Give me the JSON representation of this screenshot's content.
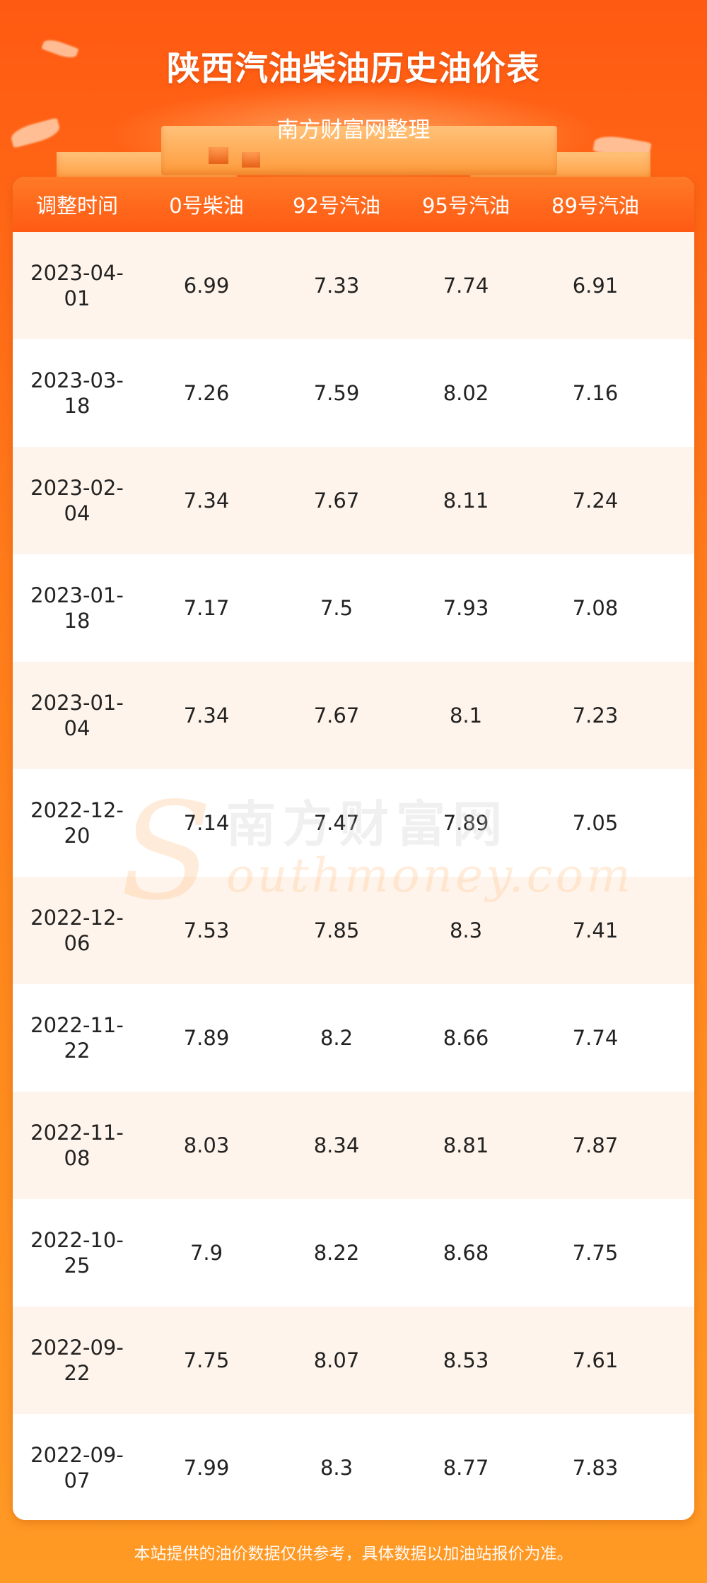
{
  "header": {
    "title": "陕西汽油柴油历史油价表",
    "subtitle": "南方财富网整理"
  },
  "table": {
    "columns": [
      "调整时间",
      "0号柴油",
      "92号汽油",
      "95号汽油",
      "89号汽油"
    ],
    "rows": [
      {
        "date_line1": "2023-04-",
        "date_line2": "01",
        "diesel0": "6.99",
        "gas92": "7.33",
        "gas95": "7.74",
        "gas89": "6.91"
      },
      {
        "date_line1": "2023-03-",
        "date_line2": "18",
        "diesel0": "7.26",
        "gas92": "7.59",
        "gas95": "8.02",
        "gas89": "7.16"
      },
      {
        "date_line1": "2023-02-",
        "date_line2": "04",
        "diesel0": "7.34",
        "gas92": "7.67",
        "gas95": "8.11",
        "gas89": "7.24"
      },
      {
        "date_line1": "2023-01-",
        "date_line2": "18",
        "diesel0": "7.17",
        "gas92": "7.5",
        "gas95": "7.93",
        "gas89": "7.08"
      },
      {
        "date_line1": "2023-01-",
        "date_line2": "04",
        "diesel0": "7.34",
        "gas92": "7.67",
        "gas95": "8.1",
        "gas89": "7.23"
      },
      {
        "date_line1": "2022-12-",
        "date_line2": "20",
        "diesel0": "7.14",
        "gas92": "7.47",
        "gas95": "7.89",
        "gas89": "7.05"
      },
      {
        "date_line1": "2022-12-",
        "date_line2": "06",
        "diesel0": "7.53",
        "gas92": "7.85",
        "gas95": "8.3",
        "gas89": "7.41"
      },
      {
        "date_line1": "2022-11-",
        "date_line2": "22",
        "diesel0": "7.89",
        "gas92": "8.2",
        "gas95": "8.66",
        "gas89": "7.74"
      },
      {
        "date_line1": "2022-11-",
        "date_line2": "08",
        "diesel0": "8.03",
        "gas92": "8.34",
        "gas95": "8.81",
        "gas89": "7.87"
      },
      {
        "date_line1": "2022-10-",
        "date_line2": "25",
        "diesel0": "7.9",
        "gas92": "8.22",
        "gas95": "8.68",
        "gas89": "7.75"
      },
      {
        "date_line1": "2022-09-",
        "date_line2": "22",
        "diesel0": "7.75",
        "gas92": "8.07",
        "gas95": "8.53",
        "gas89": "7.61"
      },
      {
        "date_line1": "2022-09-",
        "date_line2": "07",
        "diesel0": "7.99",
        "gas92": "8.3",
        "gas95": "8.77",
        "gas89": "7.83"
      }
    ]
  },
  "watermark": {
    "cn": "南方财富网",
    "en": "outhmoney.com",
    "s": "S"
  },
  "footer": {
    "note": "本站提供的油价数据仅供参考，具体数据以加油站报价为准。"
  },
  "colors": {
    "accent": "#ff5a14",
    "row_alt": "#fff4eb"
  }
}
